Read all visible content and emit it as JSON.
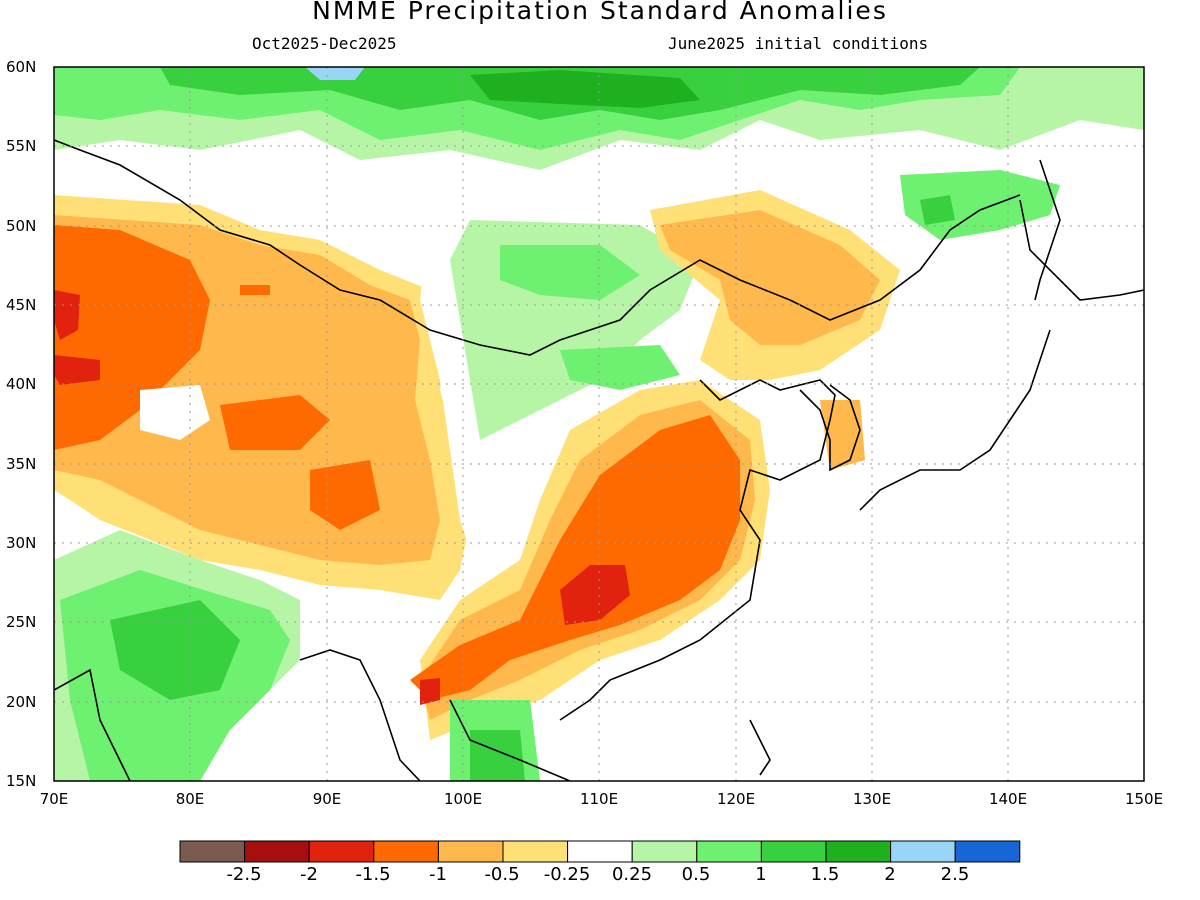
{
  "title": "NMME Precipitation Standard Anomalies",
  "period": "Oct2025-Dec2025",
  "init": "June2025 initial conditions",
  "lat_labels": [
    "60N",
    "55N",
    "50N",
    "45N",
    "40N",
    "35N",
    "30N",
    "25N",
    "20N",
    "15N"
  ],
  "lon_labels": [
    "70E",
    "80E",
    "90E",
    "100E",
    "110E",
    "120E",
    "130E",
    "140E",
    "150E"
  ],
  "colorbar": {
    "colors": [
      "#7b5a4f",
      "#a50f0f",
      "#e0220e",
      "#ff6a00",
      "#ffb84c",
      "#ffe077",
      "#ffffff",
      "#b5f5a5",
      "#6ef070",
      "#38d03e",
      "#1fb020",
      "#99d5f7",
      "#1766d6"
    ],
    "labels": [
      "-2.5",
      "-2",
      "-1.5",
      "-1",
      "-0.5",
      "-0.25",
      "0.25",
      "0.5",
      "1",
      "1.5",
      "2",
      "2.5"
    ]
  },
  "map": {
    "extent": {
      "lon": [
        70,
        150
      ],
      "lat": [
        15,
        60
      ]
    },
    "grid": "dotted",
    "anomaly_areas": [
      {
        "name": "Northern Siberia belt",
        "category": "1.0 to 1.5"
      },
      {
        "name": "Kazakhstan / Xinjiang",
        "category": "-1.5 to -1.0"
      },
      {
        "name": "Tibetan Plateau",
        "category": "-1.0 to -0.5"
      },
      {
        "name": "Mongolia / north China",
        "category": "0.5 to 1.0"
      },
      {
        "name": "Northeast China",
        "category": "-0.5 to -0.25"
      },
      {
        "name": "Southern and eastern China",
        "category": "-1.5 to -1.0"
      },
      {
        "name": "South China core",
        "category": "-2.0 to -1.5"
      },
      {
        "name": "Indian subcontinent",
        "category": "0.5 to 1.5"
      },
      {
        "name": "Indochina",
        "category": "0.5 to 1.5"
      }
    ]
  }
}
